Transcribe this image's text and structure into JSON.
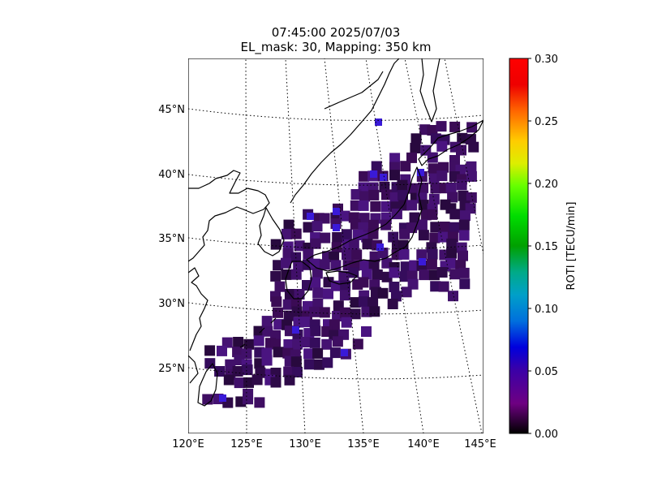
{
  "title": {
    "line1": "07:45:00 2025/07/03",
    "line2": "EL_mask: 30, Mapping: 350 km"
  },
  "map": {
    "lon_ticks": [
      "120°E",
      "125°E",
      "130°E",
      "135°E",
      "140°E",
      "145°E"
    ],
    "lat_ticks": [
      "25°N",
      "30°N",
      "35°N",
      "40°N",
      "45°N"
    ],
    "lon_range": [
      120,
      145
    ],
    "lat_range": [
      20,
      49
    ],
    "graticule": "dotted",
    "coastlines": true
  },
  "colorbar": {
    "label": "ROTI [TECU/min]",
    "ticks": [
      "0.00",
      "0.05",
      "0.10",
      "0.15",
      "0.20",
      "0.25",
      "0.30"
    ],
    "range": [
      0,
      0.3
    ],
    "colormap": "nipy_spectral",
    "background": "#3a0a52"
  },
  "chart_data": {
    "type": "heatmap",
    "title": "07:45:00 2025/07/03 EL_mask: 30, Mapping: 350 km",
    "xlabel": "",
    "ylabel": "",
    "colorbar_label": "ROTI [TECU/min]",
    "value_range": [
      0,
      0.3
    ],
    "typical_value": 0.03,
    "max_value_approx": 0.07,
    "coverage": "Japan and surrounding seas, approx. 122–145°E, 22–45°N"
  }
}
